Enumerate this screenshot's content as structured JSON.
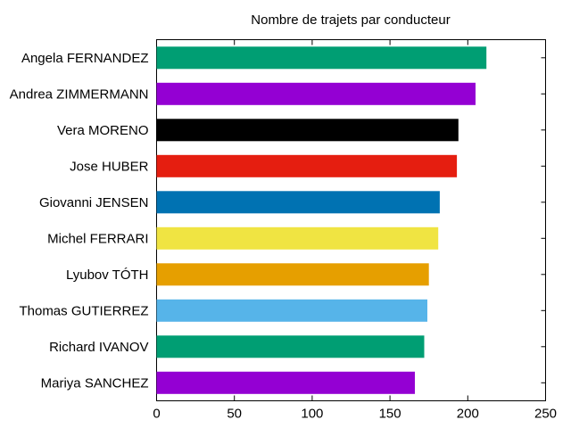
{
  "chart_data": {
    "type": "bar",
    "orientation": "horizontal",
    "title": "Nombre de trajets par conducteur",
    "xlabel": "",
    "ylabel": "",
    "xlim": [
      0,
      250
    ],
    "x_ticks": [
      0,
      50,
      100,
      150,
      200,
      250
    ],
    "grid": false,
    "legend": "none",
    "categories": [
      "Angela FERNANDEZ",
      "Andrea ZIMMERMANN",
      "Vera MORENO",
      "Jose HUBER",
      "Giovanni JENSEN",
      "Michel FERRARI",
      "Lyubov TÓTH",
      "Thomas GUTIERREZ",
      "Richard IVANOV",
      "Mariya SANCHEZ"
    ],
    "values": [
      212,
      205,
      194,
      193,
      182,
      181,
      175,
      174,
      172,
      166
    ],
    "colors": [
      "#009e73",
      "#9400d3",
      "#000000",
      "#e51e10",
      "#0072b2",
      "#f0e442",
      "#e69f00",
      "#56b4e9",
      "#009e73",
      "#9400d3"
    ]
  }
}
